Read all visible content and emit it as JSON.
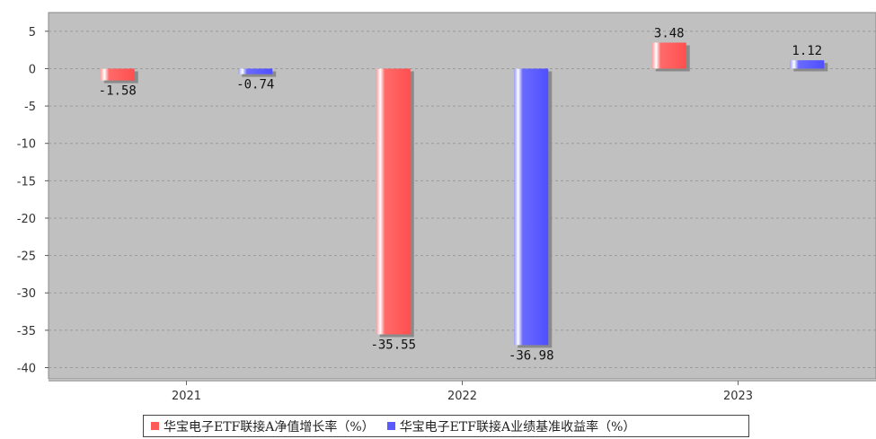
{
  "chart_data": {
    "type": "bar",
    "categories": [
      "2021",
      "2022",
      "2023"
    ],
    "series": [
      {
        "name": "华宝电子ETF联接A净值增长率（%）",
        "values": [
          -1.58,
          -35.55,
          3.48
        ],
        "color": "#ff5a5a"
      },
      {
        "name": "华宝电子ETF联接A业绩基准收益率（%）",
        "values": [
          -0.74,
          -36.98,
          1.12
        ],
        "color": "#5a5aff"
      }
    ],
    "data_labels": {
      "series_0": [
        "-1.58",
        "-35.55",
        "3.48"
      ],
      "series_1": [
        "-0.74",
        "-36.98",
        "1.12"
      ]
    },
    "yticks": [
      "5",
      "0",
      "-5",
      "-10",
      "-15",
      "-20",
      "-25",
      "-30",
      "-35",
      "-40"
    ],
    "ylim": [
      -41.5,
      7.5
    ],
    "grid": true,
    "legend_position": "bottom",
    "plot_background": "#c0c0c0"
  }
}
